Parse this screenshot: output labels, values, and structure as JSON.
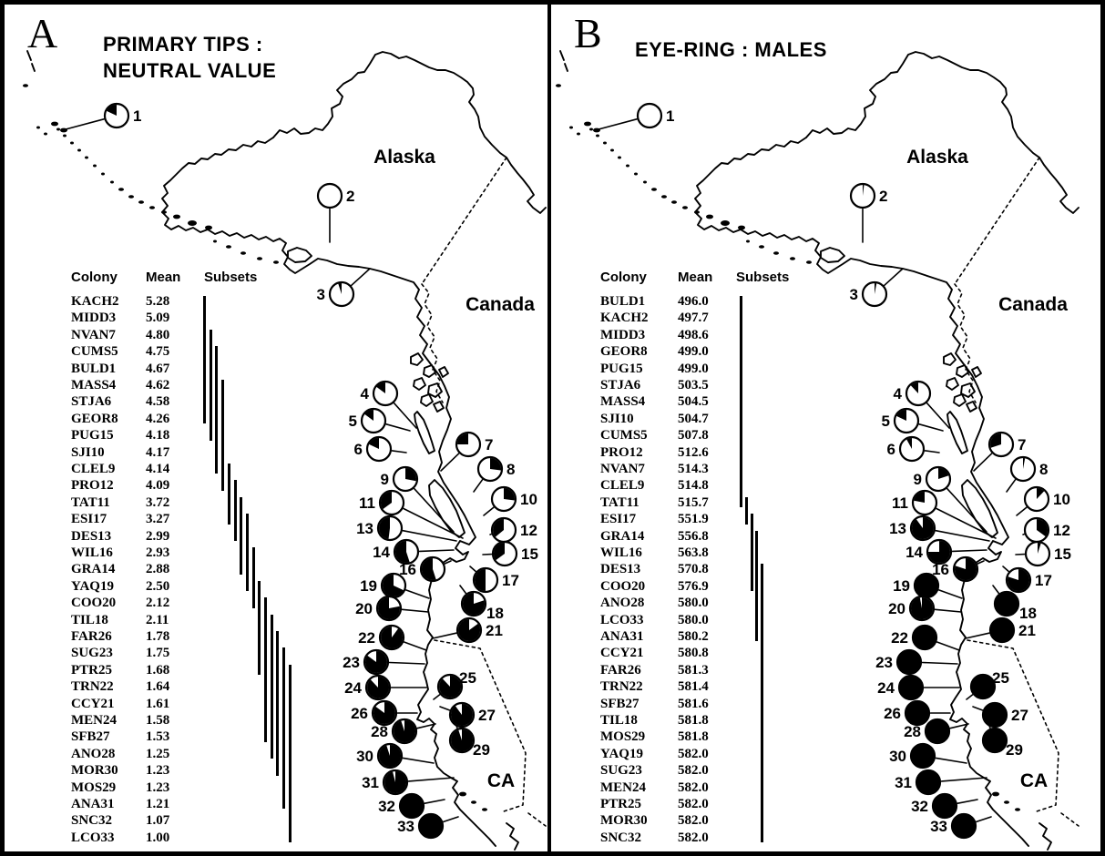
{
  "chart_data": [
    {
      "type": "pie",
      "panel_letter": "A",
      "title": "PRIMARY TIPS : NEUTRAL VALUE",
      "title_lines": [
        "PRIMARY TIPS :",
        "NEUTRAL VALUE"
      ],
      "table_headers": [
        "Colony",
        "Mean",
        "Subsets"
      ],
      "rows": [
        {
          "colony": "KACH2",
          "mean": "5.28"
        },
        {
          "colony": "MIDD3",
          "mean": "5.09"
        },
        {
          "colony": "NVAN7",
          "mean": "4.80"
        },
        {
          "colony": "CUMS5",
          "mean": "4.75"
        },
        {
          "colony": "BULD1",
          "mean": "4.67"
        },
        {
          "colony": "MASS4",
          "mean": "4.62"
        },
        {
          "colony": "STJA6",
          "mean": "4.58"
        },
        {
          "colony": "GEOR8",
          "mean": "4.26"
        },
        {
          "colony": "PUG15",
          "mean": "4.18"
        },
        {
          "colony": "SJI10",
          "mean": "4.17"
        },
        {
          "colony": "CLEL9",
          "mean": "4.14"
        },
        {
          "colony": "PRO12",
          "mean": "4.09"
        },
        {
          "colony": "TAT11",
          "mean": "3.72"
        },
        {
          "colony": "ESI17",
          "mean": "3.27"
        },
        {
          "colony": "DES13",
          "mean": "2.99"
        },
        {
          "colony": "WIL16",
          "mean": "2.93"
        },
        {
          "colony": "GRA14",
          "mean": "2.88"
        },
        {
          "colony": "YAQ19",
          "mean": "2.50"
        },
        {
          "colony": "COO20",
          "mean": "2.12"
        },
        {
          "colony": "TIL18",
          "mean": "2.11"
        },
        {
          "colony": "FAR26",
          "mean": "1.78"
        },
        {
          "colony": "SUG23",
          "mean": "1.75"
        },
        {
          "colony": "PTR25",
          "mean": "1.68"
        },
        {
          "colony": "TRN22",
          "mean": "1.64"
        },
        {
          "colony": "CCY21",
          "mean": "1.61"
        },
        {
          "colony": "MEN24",
          "mean": "1.58"
        },
        {
          "colony": "SFB27",
          "mean": "1.53"
        },
        {
          "colony": "ANO28",
          "mean": "1.25"
        },
        {
          "colony": "MOR30",
          "mean": "1.23"
        },
        {
          "colony": "MOS29",
          "mean": "1.23"
        },
        {
          "colony": "ANA31",
          "mean": "1.21"
        },
        {
          "colony": "SNC32",
          "mean": "1.07"
        },
        {
          "colony": "LCO33",
          "mean": "1.00"
        }
      ],
      "subset_lines": [
        {
          "from_row": 0,
          "to_row": 7
        },
        {
          "from_row": 2,
          "to_row": 8
        },
        {
          "from_row": 3,
          "to_row": 10
        },
        {
          "from_row": 5,
          "to_row": 11
        },
        {
          "from_row": 10,
          "to_row": 13
        },
        {
          "from_row": 11,
          "to_row": 14
        },
        {
          "from_row": 12,
          "to_row": 16
        },
        {
          "from_row": 13,
          "to_row": 17
        },
        {
          "from_row": 15,
          "to_row": 18
        },
        {
          "from_row": 17,
          "to_row": 22
        },
        {
          "from_row": 18,
          "to_row": 26
        },
        {
          "from_row": 19,
          "to_row": 27
        },
        {
          "from_row": 20,
          "to_row": 28
        },
        {
          "from_row": 21,
          "to_row": 30
        },
        {
          "from_row": 22,
          "to_row": 32
        }
      ],
      "map_region_labels": {
        "alaska": "Alaska",
        "canada": "Canada",
        "california": "CA"
      },
      "pies": [
        {
          "site": 1,
          "black_fraction": 0.18,
          "wedge_dir": "ccw"
        },
        {
          "site": 2,
          "black_fraction": 0,
          "wedge_dir": "none"
        },
        {
          "site": 3,
          "black_fraction": 0.05,
          "wedge_dir": "ccw"
        },
        {
          "site": 4,
          "black_fraction": 0.15,
          "wedge_dir": "ccw"
        },
        {
          "site": 5,
          "black_fraction": 0.15,
          "wedge_dir": "ccw"
        },
        {
          "site": 6,
          "black_fraction": 0.18,
          "wedge_dir": "ccw"
        },
        {
          "site": 7,
          "black_fraction": 0.25,
          "wedge_dir": "ccw"
        },
        {
          "site": 8,
          "black_fraction": 0.27,
          "wedge_dir": "cw"
        },
        {
          "site": 9,
          "black_fraction": 0.28,
          "wedge_dir": "cw"
        },
        {
          "site": 10,
          "black_fraction": 0.27,
          "wedge_dir": "cw"
        },
        {
          "site": 11,
          "black_fraction": 0.35,
          "wedge_dir": "ccw"
        },
        {
          "site": 12,
          "black_fraction": 0.36,
          "wedge_dir": "ccw"
        },
        {
          "site": 13,
          "black_fraction": 0.48,
          "wedge_dir": "ccw"
        },
        {
          "site": 14,
          "black_fraction": 0.55,
          "wedge_dir": "ccw"
        },
        {
          "site": 15,
          "black_fraction": 0.35,
          "wedge_dir": "ccw"
        },
        {
          "site": 16,
          "black_fraction": 0.55,
          "wedge_dir": "ccw"
        },
        {
          "site": 17,
          "black_fraction": 0.5,
          "wedge_dir": "ccw"
        },
        {
          "site": 18,
          "black_fraction": 0.8,
          "wedge_dir": "ccw"
        },
        {
          "site": 19,
          "black_fraction": 0.68,
          "wedge_dir": "ccw"
        },
        {
          "site": 20,
          "black_fraction": 0.78,
          "wedge_dir": "ccw"
        },
        {
          "site": 21,
          "black_fraction": 0.85,
          "wedge_dir": "ccw"
        },
        {
          "site": 22,
          "black_fraction": 0.9,
          "wedge_dir": "ccw"
        },
        {
          "site": 23,
          "black_fraction": 0.85,
          "wedge_dir": "cw"
        },
        {
          "site": 24,
          "black_fraction": 0.88,
          "wedge_dir": "cw"
        },
        {
          "site": 25,
          "black_fraction": 0.88,
          "wedge_dir": "cw"
        },
        {
          "site": 26,
          "black_fraction": 0.85,
          "wedge_dir": "cw"
        },
        {
          "site": 27,
          "black_fraction": 0.9,
          "wedge_dir": "cw"
        },
        {
          "site": 28,
          "black_fraction": 0.95,
          "wedge_dir": "cw"
        },
        {
          "site": 29,
          "black_fraction": 0.95,
          "wedge_dir": "cw"
        },
        {
          "site": 30,
          "black_fraction": 0.95,
          "wedge_dir": "cw"
        },
        {
          "site": 31,
          "black_fraction": 0.96,
          "wedge_dir": "cw"
        },
        {
          "site": 32,
          "black_fraction": 1,
          "wedge_dir": "none"
        },
        {
          "site": 33,
          "black_fraction": 1,
          "wedge_dir": "none"
        }
      ]
    },
    {
      "type": "pie",
      "panel_letter": "B",
      "title": "EYE-RING : MALES",
      "title_lines": [
        "EYE-RING : MALES"
      ],
      "table_headers": [
        "Colony",
        "Mean",
        "Subsets"
      ],
      "rows": [
        {
          "colony": "BULD1",
          "mean": "496.0"
        },
        {
          "colony": "KACH2",
          "mean": "497.7"
        },
        {
          "colony": "MIDD3",
          "mean": "498.6"
        },
        {
          "colony": "GEOR8",
          "mean": "499.0"
        },
        {
          "colony": "PUG15",
          "mean": "499.0"
        },
        {
          "colony": "STJA6",
          "mean": "503.5"
        },
        {
          "colony": "MASS4",
          "mean": "504.5"
        },
        {
          "colony": "SJI10",
          "mean": "504.7"
        },
        {
          "colony": "CUMS5",
          "mean": "507.8"
        },
        {
          "colony": "PRO12",
          "mean": "512.6"
        },
        {
          "colony": "NVAN7",
          "mean": "514.3"
        },
        {
          "colony": "CLEL9",
          "mean": "514.8"
        },
        {
          "colony": "TAT11",
          "mean": "515.7"
        },
        {
          "colony": "ESI17",
          "mean": "551.9"
        },
        {
          "colony": "GRA14",
          "mean": "556.8"
        },
        {
          "colony": "WIL16",
          "mean": "563.8"
        },
        {
          "colony": "DES13",
          "mean": "570.8"
        },
        {
          "colony": "COO20",
          "mean": "576.9"
        },
        {
          "colony": "ANO28",
          "mean": "580.0"
        },
        {
          "colony": "LCO33",
          "mean": "580.0"
        },
        {
          "colony": "ANA31",
          "mean": "580.2"
        },
        {
          "colony": "CCY21",
          "mean": "580.8"
        },
        {
          "colony": "FAR26",
          "mean": "581.3"
        },
        {
          "colony": "TRN22",
          "mean": "581.4"
        },
        {
          "colony": "SFB27",
          "mean": "581.6"
        },
        {
          "colony": "TIL18",
          "mean": "581.8"
        },
        {
          "colony": "MOS29",
          "mean": "581.8"
        },
        {
          "colony": "YAQ19",
          "mean": "582.0"
        },
        {
          "colony": "SUG23",
          "mean": "582.0"
        },
        {
          "colony": "MEN24",
          "mean": "582.0"
        },
        {
          "colony": "PTR25",
          "mean": "582.0"
        },
        {
          "colony": "MOR30",
          "mean": "582.0"
        },
        {
          "colony": "SNC32",
          "mean": "582.0"
        }
      ],
      "subset_lines": [
        {
          "from_row": 0,
          "to_row": 12
        },
        {
          "from_row": 12,
          "to_row": 13
        },
        {
          "from_row": 13,
          "to_row": 17
        },
        {
          "from_row": 14,
          "to_row": 20
        },
        {
          "from_row": 16,
          "to_row": 32
        }
      ],
      "map_region_labels": {
        "alaska": "Alaska",
        "canada": "Canada",
        "california": "CA"
      },
      "pies": [
        {
          "site": 1,
          "black_fraction": 0,
          "wedge_dir": "none"
        },
        {
          "site": 2,
          "black_fraction": 0.02,
          "wedge_dir": "cw"
        },
        {
          "site": 3,
          "black_fraction": 0.03,
          "wedge_dir": "cw"
        },
        {
          "site": 4,
          "black_fraction": 0.12,
          "wedge_dir": "ccw"
        },
        {
          "site": 5,
          "black_fraction": 0.18,
          "wedge_dir": "ccw"
        },
        {
          "site": 6,
          "black_fraction": 0.08,
          "wedge_dir": "ccw"
        },
        {
          "site": 7,
          "black_fraction": 0.3,
          "wedge_dir": "ccw"
        },
        {
          "site": 8,
          "black_fraction": 0.03,
          "wedge_dir": "cw"
        },
        {
          "site": 9,
          "black_fraction": 0.2,
          "wedge_dir": "cw"
        },
        {
          "site": 10,
          "black_fraction": 0.12,
          "wedge_dir": "cw"
        },
        {
          "site": 11,
          "black_fraction": 0.22,
          "wedge_dir": "ccw"
        },
        {
          "site": 12,
          "black_fraction": 0.35,
          "wedge_dir": "cw"
        },
        {
          "site": 13,
          "black_fraction": 0.9,
          "wedge_dir": "cw"
        },
        {
          "site": 14,
          "black_fraction": 0.75,
          "wedge_dir": "cw"
        },
        {
          "site": 15,
          "black_fraction": 0.05,
          "wedge_dir": "cw"
        },
        {
          "site": 16,
          "black_fraction": 0.8,
          "wedge_dir": "cw"
        },
        {
          "site": 17,
          "black_fraction": 0.8,
          "wedge_dir": "cw"
        },
        {
          "site": 18,
          "black_fraction": 1,
          "wedge_dir": "none"
        },
        {
          "site": 19,
          "black_fraction": 1,
          "wedge_dir": "none"
        },
        {
          "site": 20,
          "black_fraction": 0.97,
          "wedge_dir": "cw"
        },
        {
          "site": 21,
          "black_fraction": 1,
          "wedge_dir": "none"
        },
        {
          "site": 22,
          "black_fraction": 1,
          "wedge_dir": "none"
        },
        {
          "site": 23,
          "black_fraction": 1,
          "wedge_dir": "none"
        },
        {
          "site": 24,
          "black_fraction": 1,
          "wedge_dir": "none"
        },
        {
          "site": 25,
          "black_fraction": 1,
          "wedge_dir": "none"
        },
        {
          "site": 26,
          "black_fraction": 1,
          "wedge_dir": "none"
        },
        {
          "site": 27,
          "black_fraction": 1,
          "wedge_dir": "none"
        },
        {
          "site": 28,
          "black_fraction": 1,
          "wedge_dir": "none"
        },
        {
          "site": 29,
          "black_fraction": 1,
          "wedge_dir": "none"
        },
        {
          "site": 30,
          "black_fraction": 1,
          "wedge_dir": "none"
        },
        {
          "site": 31,
          "black_fraction": 1,
          "wedge_dir": "none"
        },
        {
          "site": 32,
          "black_fraction": 1,
          "wedge_dir": "none"
        },
        {
          "site": 33,
          "black_fraction": 1,
          "wedge_dir": "none"
        }
      ]
    }
  ]
}
